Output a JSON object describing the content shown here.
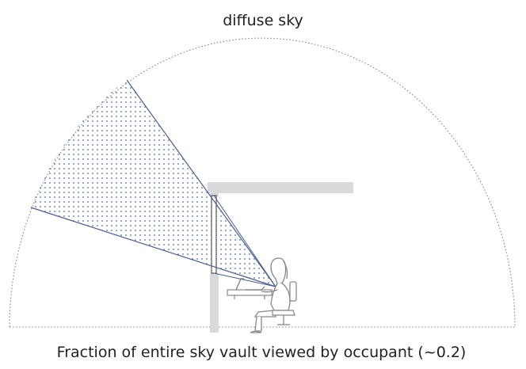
{
  "title": "diffuse sky",
  "caption": "Fraction of entire sky vault viewed by occupant   (~0.2)",
  "colors": {
    "vault_outline": "#777777",
    "view_ray": "#4a5d8f",
    "dot_fill": "#4d6aa3",
    "wall_overhang": "#d9d9d9",
    "occupant_line": "#888888"
  }
}
